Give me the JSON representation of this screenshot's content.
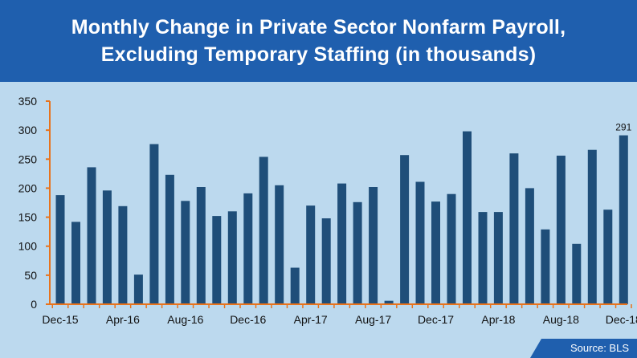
{
  "header": {
    "title_line1": "Monthly Change in Private Sector Nonfarm Payroll,",
    "title_line2": "Excluding Temporary Staffing (in thousands)"
  },
  "source": "Source: BLS",
  "colors": {
    "header_bg": "#1f5fae",
    "plot_bg": "#bcd9ee",
    "bar": "#1f4e79",
    "axis": "#e8731c"
  },
  "chart_data": {
    "type": "bar",
    "title": "Monthly Change in Private Sector Nonfarm Payroll, Excluding Temporary Staffing (in thousands)",
    "xlabel": "",
    "ylabel": "",
    "ylim": [
      0,
      350
    ],
    "yticks": [
      0,
      50,
      100,
      150,
      200,
      250,
      300,
      350
    ],
    "grid": false,
    "categories": [
      "Dec-15",
      "Jan-16",
      "Feb-16",
      "Mar-16",
      "Apr-16",
      "May-16",
      "Jun-16",
      "Jul-16",
      "Aug-16",
      "Sep-16",
      "Oct-16",
      "Nov-16",
      "Dec-16",
      "Jan-17",
      "Feb-17",
      "Mar-17",
      "Apr-17",
      "May-17",
      "Jun-17",
      "Jul-17",
      "Aug-17",
      "Sep-17",
      "Oct-17",
      "Nov-17",
      "Dec-17",
      "Jan-18",
      "Feb-18",
      "Mar-18",
      "Apr-18",
      "May-18",
      "Jun-18",
      "Jul-18",
      "Aug-18",
      "Sep-18",
      "Oct-18",
      "Nov-18",
      "Dec-18"
    ],
    "values": [
      188,
      142,
      236,
      196,
      169,
      51,
      276,
      223,
      178,
      202,
      152,
      160,
      191,
      254,
      205,
      63,
      170,
      148,
      208,
      176,
      202,
      6,
      257,
      211,
      177,
      190,
      298,
      159,
      159,
      260,
      200,
      129,
      256,
      104,
      266,
      163,
      291
    ],
    "tick_labels": [
      {
        "index": 0,
        "label": "Dec-15"
      },
      {
        "index": 4,
        "label": "Apr-16"
      },
      {
        "index": 8,
        "label": "Aug-16"
      },
      {
        "index": 12,
        "label": "Dec-16"
      },
      {
        "index": 16,
        "label": "Apr-17"
      },
      {
        "index": 20,
        "label": "Aug-17"
      },
      {
        "index": 24,
        "label": "Dec-17"
      },
      {
        "index": 28,
        "label": "Apr-18"
      },
      {
        "index": 32,
        "label": "Aug-18"
      },
      {
        "index": 36,
        "label": "Dec-18"
      }
    ],
    "annotations": [
      {
        "index": 36,
        "text": "291"
      }
    ]
  }
}
